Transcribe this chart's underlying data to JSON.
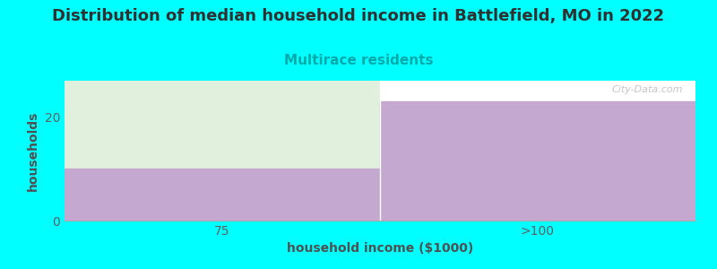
{
  "title": "Distribution of median household income in Battlefield, MO in 2022",
  "subtitle": "Multirace residents",
  "xlabel": "household income ($1000)",
  "ylabel": "households",
  "background_color": "#00FFFF",
  "plot_bg_color": "#FFFFFF",
  "bar_categories": [
    "75",
    ">100"
  ],
  "bar_values": [
    10,
    23
  ],
  "bar_color": "#C4A8D0",
  "bar_max_color": "#E0F0DC",
  "bar_max_value": 27,
  "ylim": [
    0,
    27
  ],
  "yticks": [
    0,
    20
  ],
  "title_color": "#303030",
  "subtitle_color": "#00AAAA",
  "axis_color": "#606060",
  "label_color": "#505050",
  "watermark": "City-Data.com",
  "title_fontsize": 13,
  "subtitle_fontsize": 11
}
